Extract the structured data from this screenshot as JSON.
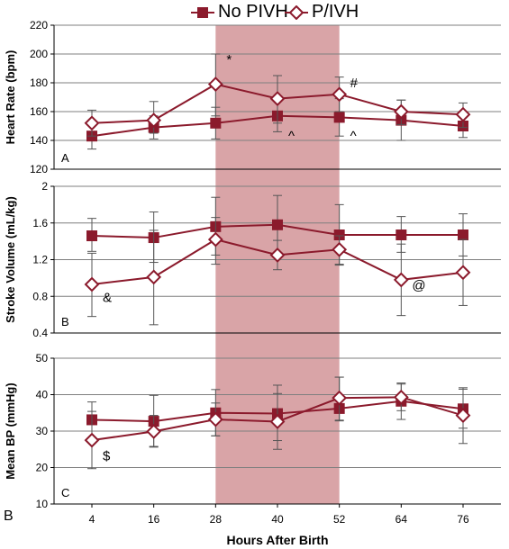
{
  "chart_data": {
    "type": "line",
    "x": [
      4,
      16,
      28,
      40,
      52,
      64,
      76
    ],
    "xlabel": "Hours After Birth",
    "xticks": [
      "4",
      "16",
      "28",
      "40",
      "52",
      "64",
      "76"
    ],
    "legend": [
      {
        "name": "No PIVH",
        "marker": "filled-square"
      },
      {
        "name": "P/IVH",
        "marker": "open-diamond"
      }
    ],
    "shaded_region": {
      "x_from": 28,
      "x_to": 52,
      "color": "#d9a4a7"
    },
    "colors": {
      "series": "#8b1a2c",
      "shade": "#d9a4a7",
      "grid": "#7f7f7f"
    },
    "figure_label": "B",
    "panels": [
      {
        "panel_label": "A",
        "ylabel": "Heart Rate (bpm)",
        "ylim": [
          120,
          220
        ],
        "yticks": [
          "120",
          "140",
          "160",
          "180",
          "200",
          "220"
        ],
        "series": [
          {
            "name": "No PIVH",
            "values": [
              143,
              149,
              152,
              157,
              156,
              154,
              150
            ],
            "err_low": [
              134,
              141,
              141,
              146,
              143,
              140,
              142
            ],
            "err_high": [
              152,
              157,
              163,
              168,
              169,
              168,
              158
            ]
          },
          {
            "name": "P/IVH",
            "values": [
              152,
              154,
              179,
              169,
              172,
              160,
              158
            ],
            "err_low": [
              143,
              145,
              157,
              152,
              160,
              151,
              149
            ],
            "err_high": [
              161,
              167,
              200,
              185,
              184,
              168,
              166
            ]
          }
        ],
        "annotations": [
          {
            "text": "*",
            "x": 28,
            "y": 193
          },
          {
            "text": "#",
            "x": 52,
            "y": 177
          },
          {
            "text": "^",
            "x": 40,
            "y": 140
          },
          {
            "text": "^",
            "x": 52,
            "y": 140
          }
        ]
      },
      {
        "panel_label": "B",
        "ylabel": "Stroke Volume (mL/kg)",
        "ylim": [
          0.4,
          2.0
        ],
        "yticks": [
          "0.4",
          "0.8",
          "1.2",
          "1.6",
          "2"
        ],
        "series": [
          {
            "name": "No PIVH",
            "values": [
              1.46,
              1.44,
              1.56,
              1.58,
              1.47,
              1.47,
              1.47
            ],
            "err_low": [
              1.29,
              1.17,
              1.25,
              1.27,
              1.14,
              1.28,
              1.24
            ],
            "err_high": [
              1.65,
              1.72,
              1.88,
              1.9,
              1.8,
              1.67,
              1.7
            ]
          },
          {
            "name": "P/IVH",
            "values": [
              0.93,
              1.01,
              1.42,
              1.25,
              1.31,
              0.98,
              1.06
            ],
            "err_low": [
              0.58,
              0.49,
              1.15,
              1.09,
              1.15,
              0.59,
              0.7
            ],
            "err_high": [
              1.27,
              1.52,
              1.66,
              1.41,
              1.46,
              1.37,
              1.42
            ]
          }
        ],
        "annotations": [
          {
            "text": "&",
            "x": 4,
            "y": 0.74
          },
          {
            "text": "@",
            "x": 64,
            "y": 0.87
          }
        ]
      },
      {
        "panel_label": "C",
        "ylabel": "Mean BP (mmHg)",
        "ylim": [
          10,
          50
        ],
        "yticks": [
          "10",
          "20",
          "30",
          "40",
          "50"
        ],
        "series": [
          {
            "name": "No PIVH",
            "values": [
              33.1,
              32.7,
              35.0,
              34.8,
              36.2,
              38.2,
              36.1
            ],
            "err_low": [
              28.2,
              25.6,
              28.7,
              27.4,
              32.8,
              33.2,
              30.8
            ],
            "err_high": [
              38.0,
              39.8,
              41.4,
              42.6,
              44.8,
              43.2,
              41.5
            ]
          },
          {
            "name": "P/IVH",
            "values": [
              27.5,
              29.9,
              33.2,
              32.6,
              39.1,
              39.3,
              34.3
            ],
            "err_low": [
              19.7,
              25.8,
              28.7,
              25.0,
              33.0,
              35.6,
              26.6
            ],
            "err_high": [
              35.4,
              34.3,
              37.7,
              40.3,
              44.8,
              42.9,
              41.9
            ]
          }
        ],
        "annotations": [
          {
            "text": "$",
            "x": 4,
            "y": 22.0
          }
        ]
      }
    ]
  }
}
